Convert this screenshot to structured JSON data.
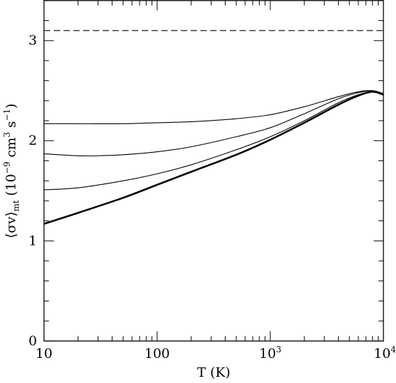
{
  "chart_data": {
    "type": "line",
    "xlabel": "T (K)",
    "ylabel": {
      "main": "⟨σv⟩",
      "subscript": "mt",
      "units_open": "(10",
      "units_exp1": "−9",
      "units_mid": " cm",
      "units_exp2": "3",
      "units_mid2": " s",
      "units_exp3": "−1",
      "units_close": ")"
    },
    "x_scale": "log",
    "xlim": [
      10,
      10000
    ],
    "ylim": [
      0,
      3.4
    ],
    "x_tick_labels": [
      {
        "value": 10,
        "base": "10",
        "exp": ""
      },
      {
        "value": 100,
        "base": "100",
        "exp": ""
      },
      {
        "value": 1000,
        "base": "10",
        "exp": "3"
      },
      {
        "value": 10000,
        "base": "10",
        "exp": "4"
      }
    ],
    "y_tick_labels": [
      {
        "value": 0,
        "label": "0"
      },
      {
        "value": 1,
        "label": "1"
      },
      {
        "value": 2,
        "label": "2"
      },
      {
        "value": 3,
        "label": "3"
      }
    ],
    "y_minor_step": 0.2,
    "grid": false,
    "series": [
      {
        "style": "dashed",
        "weight": "thin",
        "x": [
          10,
          10000
        ],
        "y": [
          3.1,
          3.1
        ]
      },
      {
        "style": "solid",
        "weight": "thin",
        "x": [
          10,
          20,
          50,
          100,
          200,
          500,
          1000,
          2000,
          4000,
          6000,
          8000,
          10000
        ],
        "y": [
          2.17,
          2.17,
          2.17,
          2.18,
          2.19,
          2.22,
          2.26,
          2.34,
          2.44,
          2.49,
          2.5,
          2.47
        ]
      },
      {
        "style": "solid",
        "weight": "thin",
        "x": [
          10,
          20,
          30,
          50,
          100,
          200,
          500,
          1000,
          2000,
          4000,
          6000,
          8000,
          10000
        ],
        "y": [
          1.87,
          1.85,
          1.85,
          1.86,
          1.89,
          1.94,
          2.04,
          2.13,
          2.27,
          2.42,
          2.48,
          2.5,
          2.47
        ]
      },
      {
        "style": "solid",
        "weight": "thin",
        "x": [
          10,
          20,
          50,
          100,
          200,
          500,
          1000,
          2000,
          4000,
          6000,
          8000,
          10000
        ],
        "y": [
          1.51,
          1.53,
          1.6,
          1.67,
          1.76,
          1.91,
          2.04,
          2.2,
          2.38,
          2.46,
          2.49,
          2.46
        ]
      },
      {
        "style": "solid",
        "weight": "thick",
        "x": [
          10,
          20,
          50,
          100,
          200,
          500,
          1000,
          2000,
          4000,
          6000,
          8000,
          10000
        ],
        "y": [
          1.17,
          1.28,
          1.43,
          1.56,
          1.69,
          1.86,
          2.01,
          2.18,
          2.36,
          2.45,
          2.49,
          2.46
        ]
      }
    ]
  }
}
